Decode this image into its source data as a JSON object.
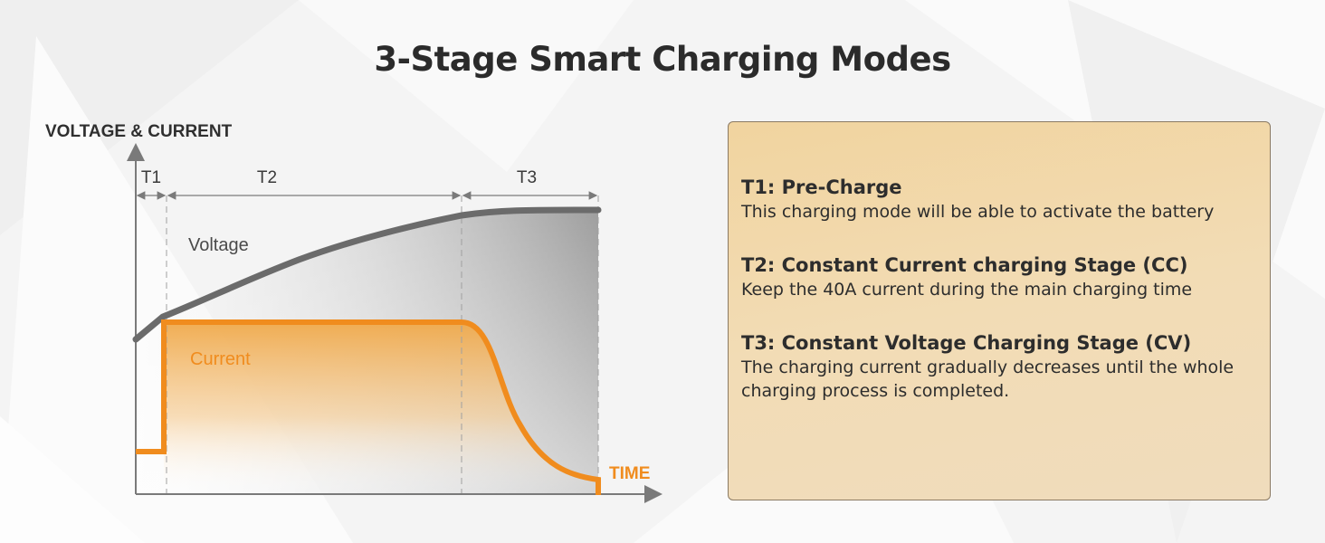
{
  "title": "3-Stage Smart Charging Modes",
  "chart_data": {
    "type": "line",
    "ylabel": "VOLTAGE & CURRENT",
    "xlabel": "TIME",
    "stages": [
      "T1",
      "T2",
      "T3"
    ],
    "series": [
      {
        "name": "Voltage",
        "color": "#6b6b6b"
      },
      {
        "name": "Current",
        "color": "#f08c1e"
      }
    ]
  },
  "panel": {
    "items": [
      {
        "title": "T1: Pre-Charge",
        "desc": "This charging mode will be able to activate the battery"
      },
      {
        "title": "T2: Constant Current charging Stage (CC)",
        "desc": "Keep the 40A current during the main charging time"
      },
      {
        "title": "T3: Constant Voltage Charging Stage (CV)",
        "desc": "The charging current gradually decreases until the whole charging process is completed."
      }
    ]
  }
}
